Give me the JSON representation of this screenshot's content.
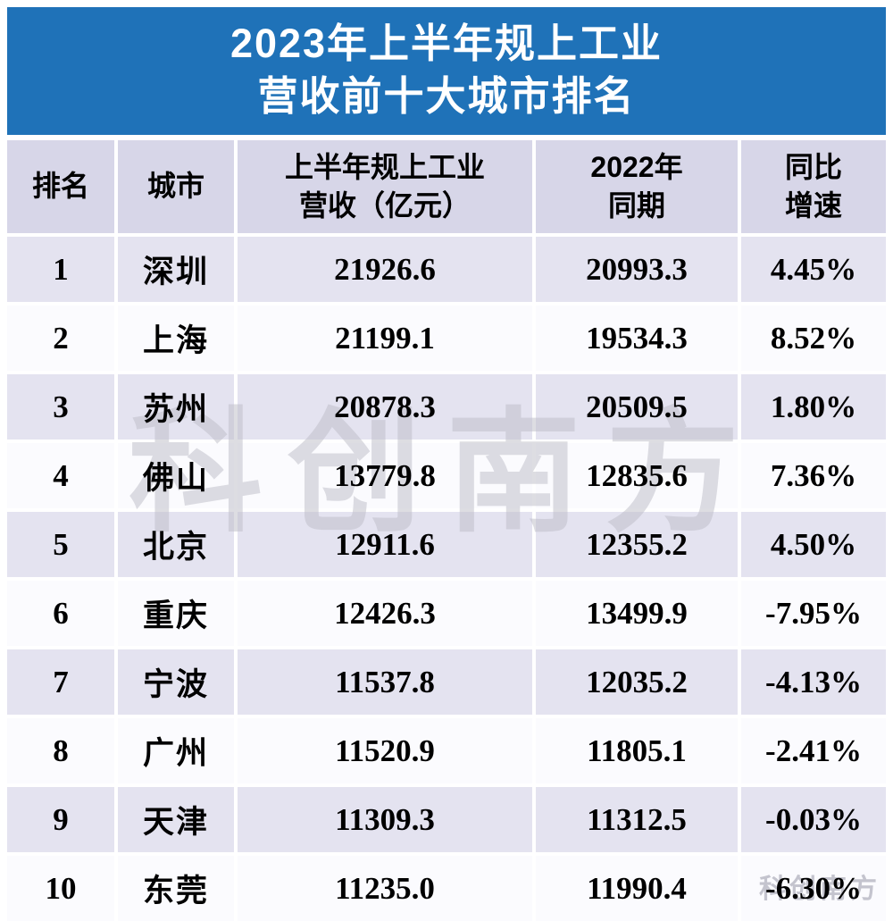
{
  "colors": {
    "banner_blue": "#1f72b8",
    "header_row_bg": "#d7d6e8",
    "row_alt_bg": "#e4e3f0",
    "row_even_bg": "#fbfbfe",
    "text": "#000000",
    "watermark_gray": "#bcbcc6"
  },
  "title": {
    "line1": "2023年上半年规上工业",
    "line2": "营收前十大城市排名"
  },
  "table": {
    "header": {
      "rank": "排名",
      "city": "城市",
      "revenue_line1": "上半年规上工业",
      "revenue_line2": "营收（亿元）",
      "prev_line1": "2022年",
      "prev_line2": "同期",
      "growth_line1": "同比",
      "growth_line2": "增速"
    }
  },
  "watermark": {
    "center": "科创南方",
    "corner": "科创南方"
  },
  "chart_data": {
    "type": "table",
    "title": "2023年上半年规上工业营收前十大城市排名",
    "columns": [
      "排名",
      "城市",
      "上半年规上工业营收（亿元）",
      "2022年同期",
      "同比增速"
    ],
    "rows": [
      [
        "1",
        "深圳",
        "21926.6",
        "20993.3",
        "4.45%"
      ],
      [
        "2",
        "上海",
        "21199.1",
        "19534.3",
        "8.52%"
      ],
      [
        "3",
        "苏州",
        "20878.3",
        "20509.5",
        "1.80%"
      ],
      [
        "4",
        "佛山",
        "13779.8",
        "12835.6",
        "7.36%"
      ],
      [
        "5",
        "北京",
        "12911.6",
        "12355.2",
        "4.50%"
      ],
      [
        "6",
        "重庆",
        "12426.3",
        "13499.9",
        "-7.95%"
      ],
      [
        "7",
        "宁波",
        "11537.8",
        "12035.2",
        "-4.13%"
      ],
      [
        "8",
        "广州",
        "11520.9",
        "11805.1",
        "-2.41%"
      ],
      [
        "9",
        "天津",
        "11309.3",
        "11312.5",
        "-0.03%"
      ],
      [
        "10",
        "东莞",
        "11235.0",
        "11990.4",
        "-6.30%"
      ]
    ]
  }
}
